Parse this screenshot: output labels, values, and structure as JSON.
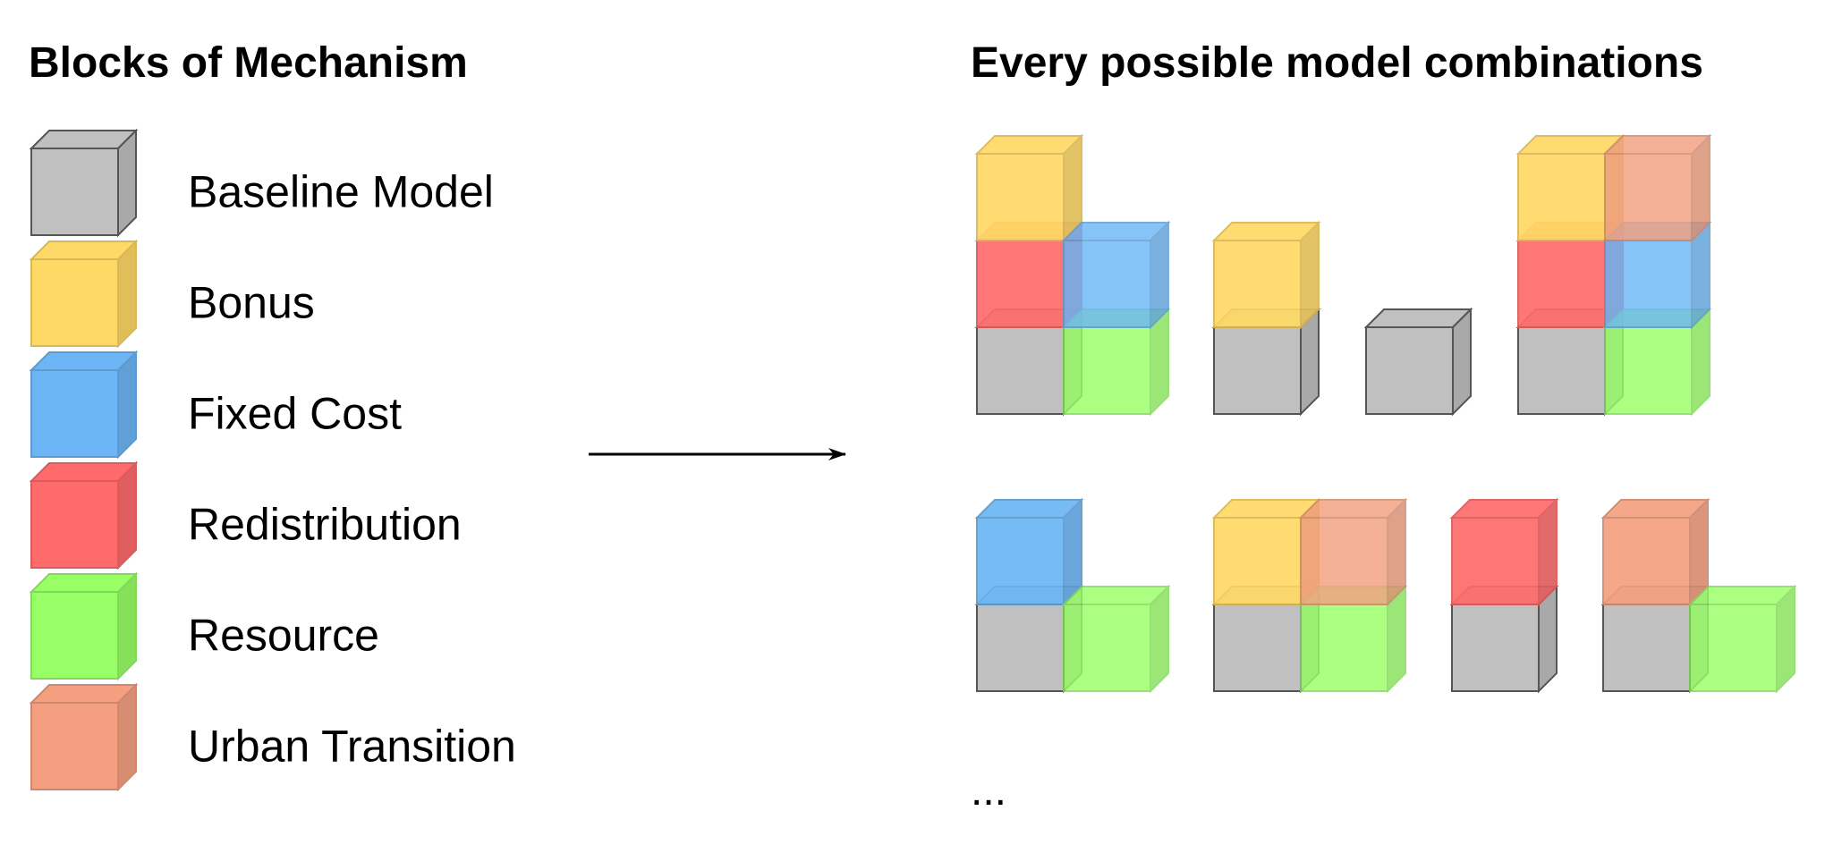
{
  "left_title": "Blocks of Mechanism",
  "right_title": "Every possible model combinations",
  "legend": [
    {
      "key": "baseline",
      "label": "Baseline Model"
    },
    {
      "key": "bonus",
      "label": "Bonus"
    },
    {
      "key": "fixed",
      "label": "Fixed Cost"
    },
    {
      "key": "redistribution",
      "label": "Redistribution"
    },
    {
      "key": "resource",
      "label": "Resource"
    },
    {
      "key": "urban",
      "label": "Urban Transition"
    }
  ],
  "colors": {
    "baseline": "#c0c0c0",
    "bonus": "#ffd966",
    "fixed": "#6cb6f5",
    "redistribution": "#ff6b6b",
    "resource": "#99ff66",
    "urban": "#f4a080"
  },
  "combinations": [
    {
      "row": 0,
      "stacks": [
        [
          "baseline",
          "redistribution",
          "bonus"
        ],
        [
          "resource",
          "fixed"
        ]
      ]
    },
    {
      "row": 0,
      "stacks": [
        [
          "baseline",
          "bonus"
        ]
      ]
    },
    {
      "row": 0,
      "stacks": [
        [
          "baseline"
        ]
      ]
    },
    {
      "row": 0,
      "stacks": [
        [
          "baseline",
          "redistribution",
          "bonus"
        ],
        [
          "resource",
          "fixed",
          "urban"
        ]
      ]
    },
    {
      "row": 1,
      "stacks": [
        [
          "baseline",
          "fixed"
        ],
        [
          "resource"
        ]
      ]
    },
    {
      "row": 1,
      "stacks": [
        [
          "baseline",
          "bonus"
        ],
        [
          "resource",
          "urban"
        ]
      ]
    },
    {
      "row": 1,
      "stacks": [
        [
          "baseline",
          "redistribution"
        ]
      ]
    },
    {
      "row": 1,
      "stacks": [
        [
          "baseline",
          "urban"
        ],
        [
          "resource"
        ]
      ]
    }
  ],
  "ellipsis": "..."
}
